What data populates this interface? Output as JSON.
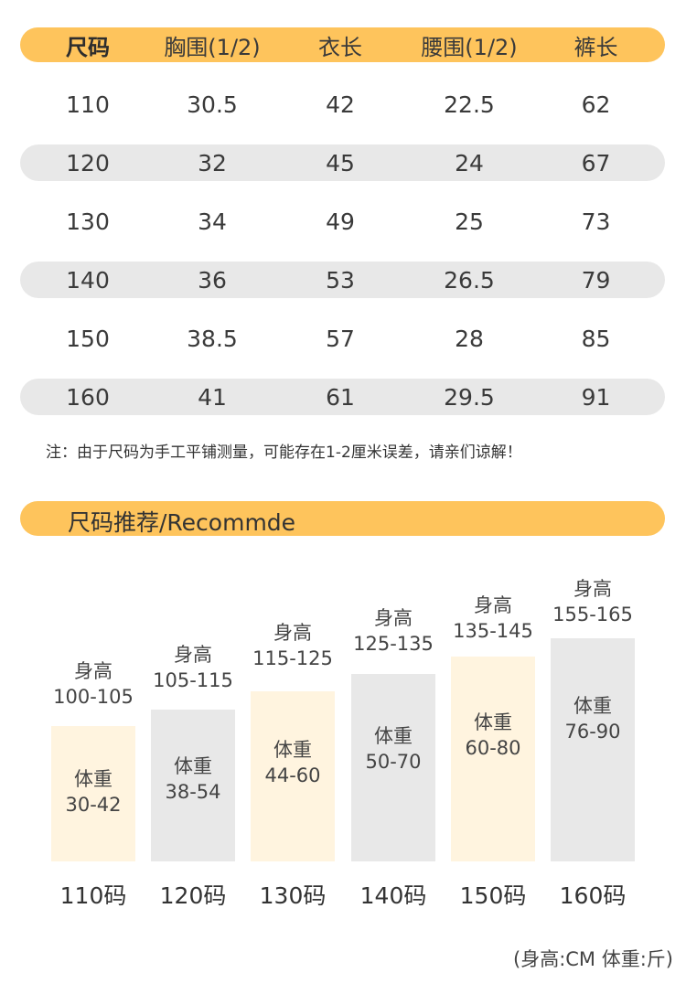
{
  "size_table": {
    "headers": [
      "尺码",
      "胸围(1/2)",
      "衣长",
      "腰围(1/2)",
      "裤长"
    ],
    "rows": [
      [
        "110",
        "30.5",
        "42",
        "22.5",
        "62"
      ],
      [
        "120",
        "32",
        "45",
        "24",
        "67"
      ],
      [
        "130",
        "34",
        "49",
        "25",
        "73"
      ],
      [
        "140",
        "36",
        "53",
        "26.5",
        "79"
      ],
      [
        "150",
        "38.5",
        "57",
        "28",
        "85"
      ],
      [
        "160",
        "41",
        "61",
        "29.5",
        "91"
      ]
    ]
  },
  "note": "注：由于尺码为手工平铺测量，可能存在1-2厘米误差，请亲们谅解！",
  "recommend": {
    "title": "尺码推荐/Recommde",
    "height_prefix": "身高",
    "weight_prefix": "体重",
    "items": [
      {
        "size": "110码",
        "height": "100-105",
        "weight": "30-42",
        "style": "light"
      },
      {
        "size": "120码",
        "height": "105-115",
        "weight": "38-54",
        "style": "grey"
      },
      {
        "size": "130码",
        "height": "115-125",
        "weight": "44-60",
        "style": "light"
      },
      {
        "size": "140码",
        "height": "125-135",
        "weight": "50-70",
        "style": "grey"
      },
      {
        "size": "150码",
        "height": "135-145",
        "weight": "60-80",
        "style": "light"
      },
      {
        "size": "160码",
        "height": "155-165",
        "weight": "76-90",
        "style": "grey"
      }
    ],
    "unit_note": "(身高:CM  体重:斤)"
  },
  "colors": {
    "accent": "#fec45c",
    "row_shade": "#e8e8e8",
    "bar_light": "#fff4df",
    "bar_grey": "#e8e8e8"
  }
}
